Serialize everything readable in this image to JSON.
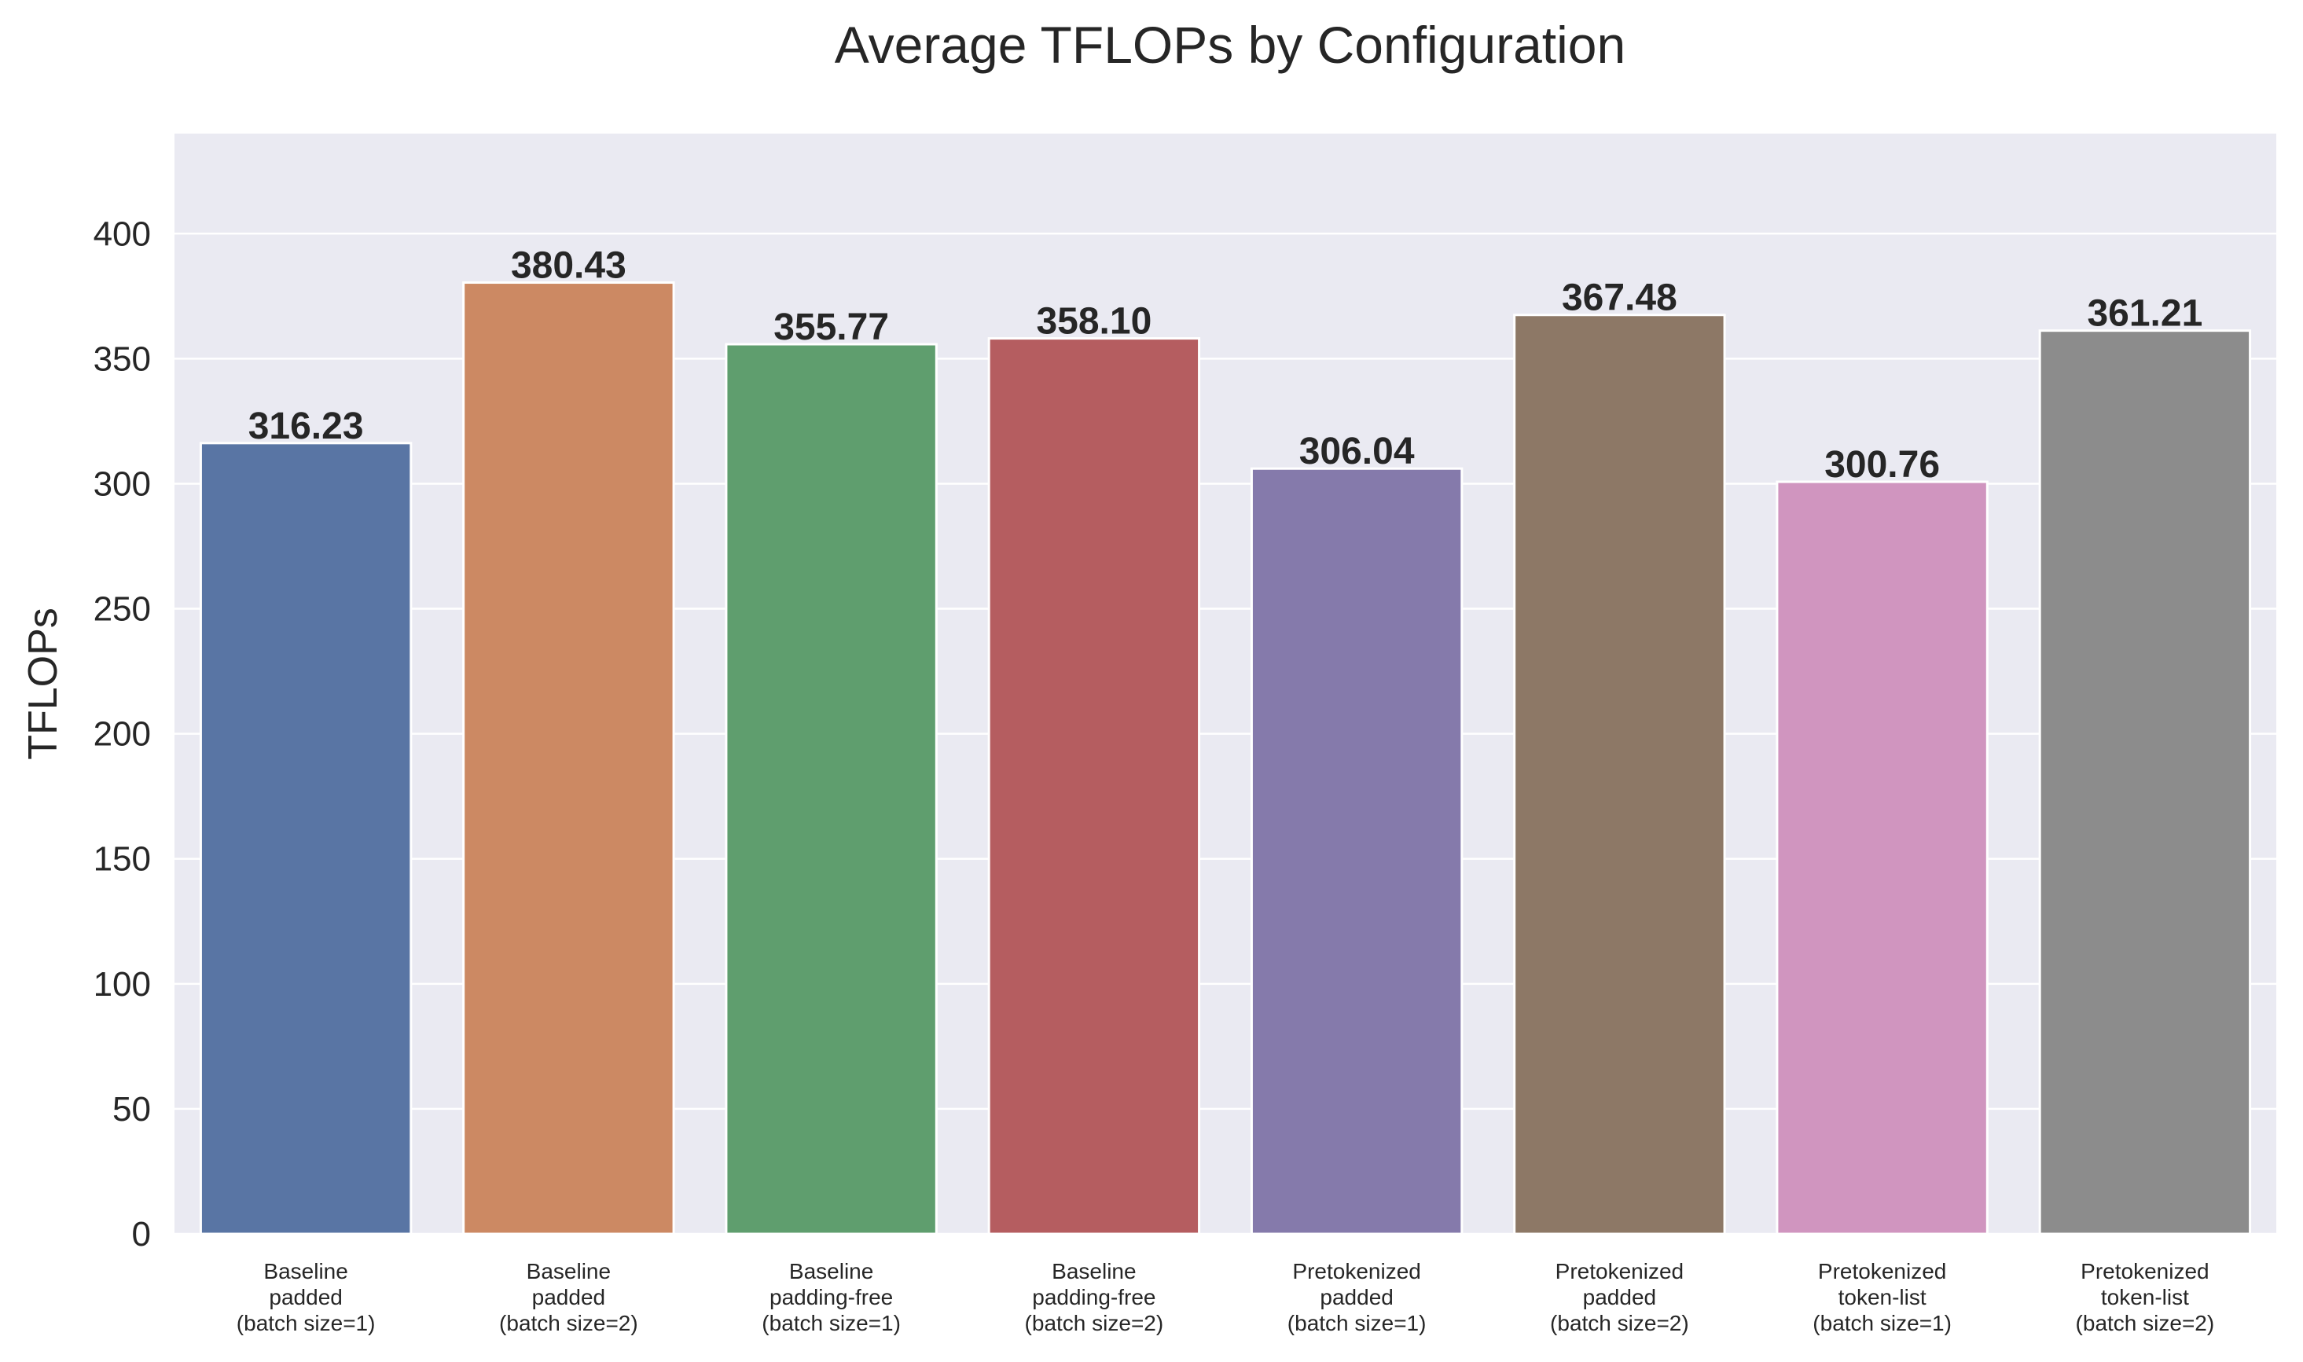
{
  "chart_data": {
    "type": "bar",
    "title": "Average TFLOPs by Configuration",
    "xlabel": "",
    "ylabel": "TFLOPs",
    "ylim": [
      0,
      440
    ],
    "yticks": [
      0,
      50,
      100,
      150,
      200,
      250,
      300,
      350,
      400
    ],
    "grid": true,
    "categories": [
      [
        "Baseline",
        "padded",
        "(batch size=1)"
      ],
      [
        "Baseline",
        "padded",
        "(batch size=2)"
      ],
      [
        "Baseline",
        "padding-free",
        "(batch size=1)"
      ],
      [
        "Baseline",
        "padding-free",
        "(batch size=2)"
      ],
      [
        "Pretokenized",
        "padded",
        "(batch size=1)"
      ],
      [
        "Pretokenized",
        "padded",
        "(batch size=2)"
      ],
      [
        "Pretokenized",
        "token-list",
        "(batch size=1)"
      ],
      [
        "Pretokenized",
        "token-list",
        "(batch size=2)"
      ]
    ],
    "values": [
      316.23,
      380.43,
      355.77,
      358.1,
      306.04,
      367.48,
      300.76,
      361.21
    ],
    "data_labels": [
      "316.23",
      "380.43",
      "355.77",
      "358.10",
      "306.04",
      "367.48",
      "300.76",
      "361.21"
    ],
    "colors": [
      "#5975a4",
      "#cc8963",
      "#5f9e6e",
      "#b55d60",
      "#857aab",
      "#8d7866",
      "#d095bf",
      "#8c8c8c"
    ],
    "background_color": "#eaeaf2"
  }
}
